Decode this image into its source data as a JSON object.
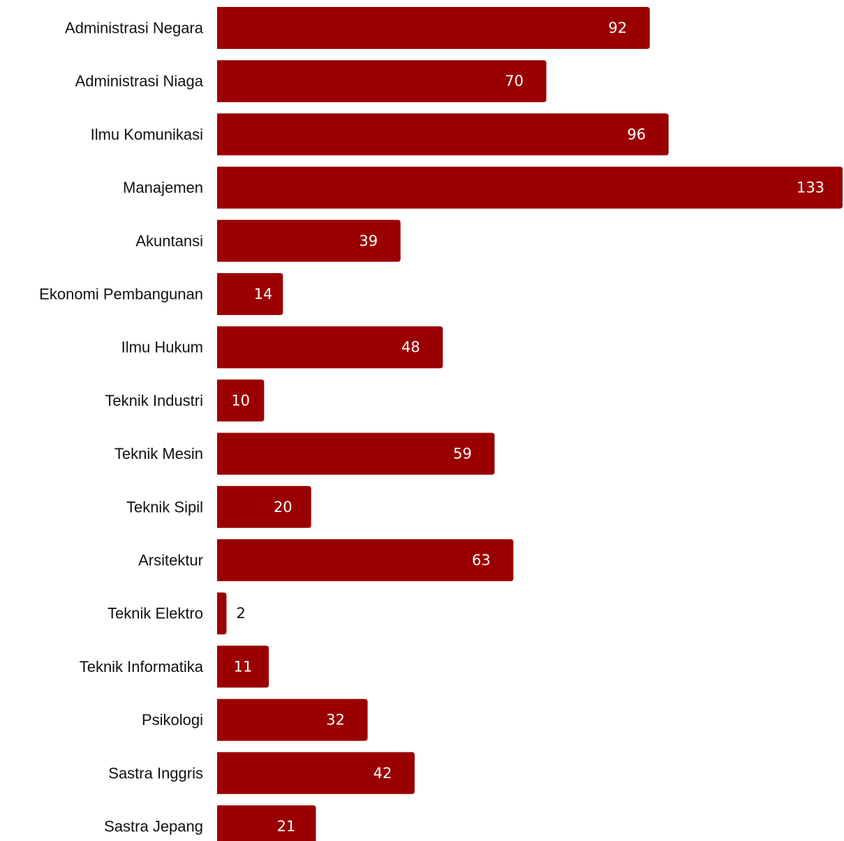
{
  "chart_data": {
    "type": "bar",
    "orientation": "horizontal",
    "categories": [
      "Administrasi Negara",
      "Administrasi Niaga",
      "Ilmu Komunikasi",
      "Manajemen",
      "Akuntansi",
      "Ekonomi Pembangunan",
      "Ilmu Hukum",
      "Teknik Industri",
      "Teknik Mesin",
      "Teknik Sipil",
      "Arsitektur",
      "Teknik Elektro",
      "Teknik Informatika",
      "Psikologi",
      "Sastra Inggris",
      "Sastra Jepang"
    ],
    "values": [
      92,
      70,
      96,
      133,
      39,
      14,
      48,
      10,
      59,
      20,
      63,
      2,
      11,
      32,
      42,
      21
    ],
    "title": "",
    "xlabel": "",
    "ylabel": "",
    "xlim": [
      0,
      133
    ],
    "grid": false,
    "legend": "none",
    "bar_color": "#9b0000",
    "value_label_color_inside": "#ffffff",
    "value_label_color_outside": "#111111"
  }
}
